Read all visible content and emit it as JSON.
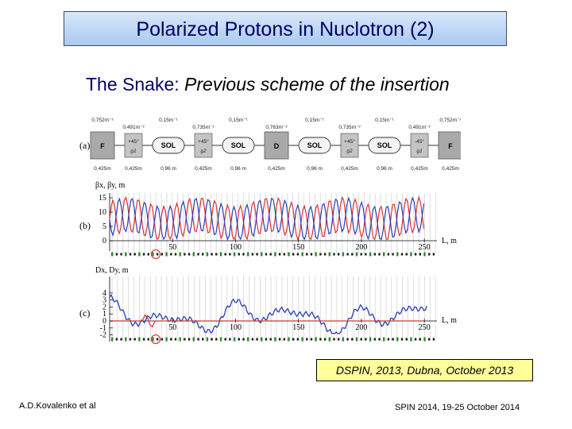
{
  "slide": {
    "title": "Polarized Protons in Nuclotron (2)",
    "subtitle_colored": "The Snake:",
    "subtitle_italic": "Previous scheme of the insertion",
    "reference": "DSPIN, 2013, Dubna, October 2013",
    "footer_left": "A.D.Kovalenko et al",
    "footer_right": "SPIN 2014, 19-25 October 2014"
  },
  "lattice": {
    "panel_label": "(a)",
    "top_labels": [
      "0,752m⁻²",
      "0,491m⁻²",
      "0,15m⁻¹",
      "0,735m⁻²",
      "0,15m⁻¹",
      "0,763m⁻²",
      "0,15m⁻¹",
      "0,735m⁻²",
      "0,15m⁻¹",
      "0,491m⁻²",
      "0,752m⁻²"
    ],
    "bottom_labels": [
      "0,425m",
      "0,425m",
      "0,96 m",
      "0,425m",
      "0,96 m",
      "0,425m",
      "0,96 m",
      "0,425m",
      "0,96 m",
      "0,425m",
      "0,425m"
    ],
    "elements": [
      {
        "type": "quad",
        "label": "F"
      },
      {
        "type": "rot",
        "line1": "+45°",
        "line2": "g1"
      },
      {
        "type": "sol",
        "label": "SOL"
      },
      {
        "type": "rot",
        "line1": "+45°",
        "line2": "g2"
      },
      {
        "type": "sol",
        "label": "SOL"
      },
      {
        "type": "quad",
        "label": "D"
      },
      {
        "type": "sol",
        "label": "SOL"
      },
      {
        "type": "rot",
        "line1": "+45°",
        "line2": "g2"
      },
      {
        "type": "sol",
        "label": "SOL"
      },
      {
        "type": "rot",
        "line1": "-45°",
        "line2": "g1"
      },
      {
        "type": "quad",
        "label": "F"
      }
    ]
  },
  "beta_plot": {
    "panel_label": "(b)",
    "ylabel": "βx, βy, m",
    "xlabel": "L, m",
    "yticks": [
      "15",
      "10",
      "5",
      "0"
    ],
    "xticks": [
      "50",
      "100",
      "150",
      "200",
      "250"
    ],
    "colors": {
      "x": "#e03030",
      "y": "#2a3fb8"
    }
  },
  "disp_plot": {
    "panel_label": "(c)",
    "ylabel": "Dx, Dy, m",
    "xlabel": "L, m",
    "yticks": [
      "4",
      "3",
      "2",
      "1",
      "0",
      "-1",
      "-2"
    ],
    "xticks": [
      "50",
      "100",
      "150",
      "200",
      "250"
    ],
    "colors": {
      "x": "#2a3fb8",
      "y": "#e03030"
    }
  }
}
